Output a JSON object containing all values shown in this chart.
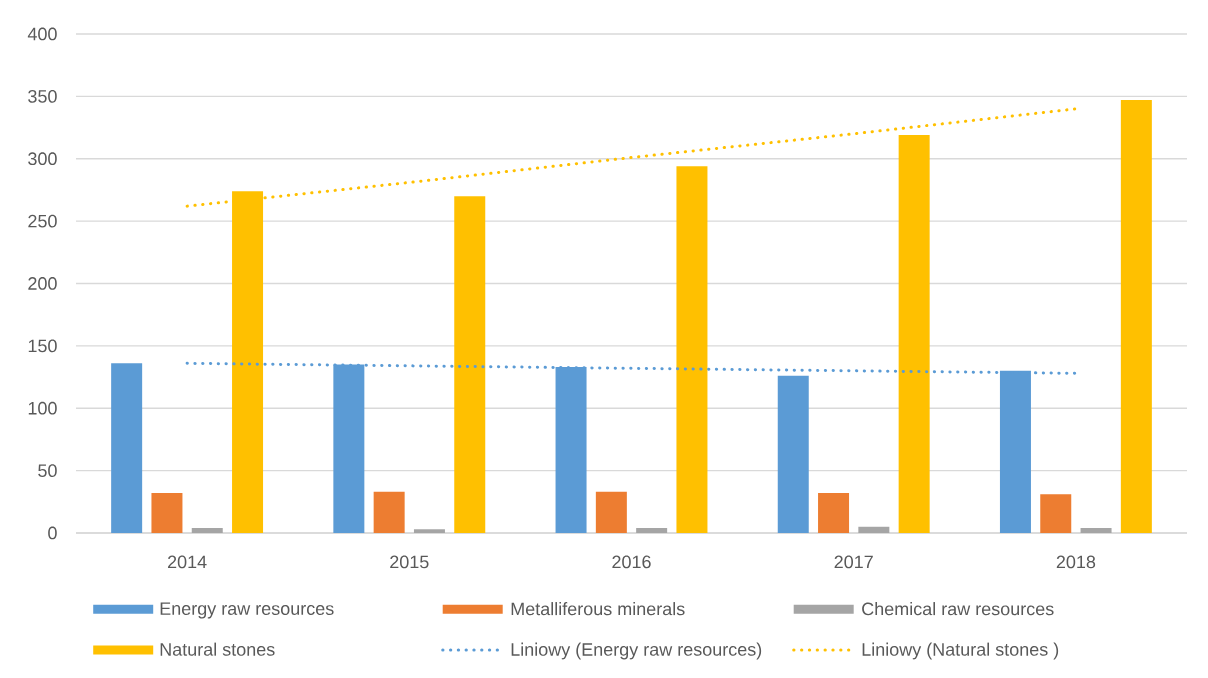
{
  "chart_data": {
    "type": "bar",
    "categories": [
      "2014",
      "2015",
      "2016",
      "2017",
      "2018"
    ],
    "series": [
      {
        "name": "Energy raw resources",
        "color": "#5b9bd5",
        "values": [
          136,
          135,
          133,
          126,
          130
        ]
      },
      {
        "name": "Metalliferous minerals",
        "color": "#ed7d31",
        "values": [
          32,
          33,
          33,
          32,
          31
        ]
      },
      {
        "name": "Chemical raw resources",
        "color": "#a5a5a5",
        "values": [
          4,
          3,
          4,
          5,
          4
        ]
      },
      {
        "name": "Natural stones",
        "color": "#ffc000",
        "values": [
          274,
          270,
          294,
          319,
          347
        ]
      },
      {
        "name": "Liniowy (Energy raw resources)",
        "type": "line",
        "line_style": "dotted",
        "color": "#5b9bd5",
        "values": [
          136,
          134,
          132,
          130,
          128
        ]
      },
      {
        "name": "Liniowy (Natural stones )",
        "type": "line",
        "line_style": "dotted",
        "color": "#ffc000",
        "values": [
          262,
          281,
          301,
          320,
          340
        ]
      }
    ],
    "ylim": [
      0,
      400
    ],
    "yticks": [
      0,
      50,
      100,
      150,
      200,
      250,
      300,
      350,
      400
    ],
    "grid": "y",
    "legend": "bottom"
  }
}
